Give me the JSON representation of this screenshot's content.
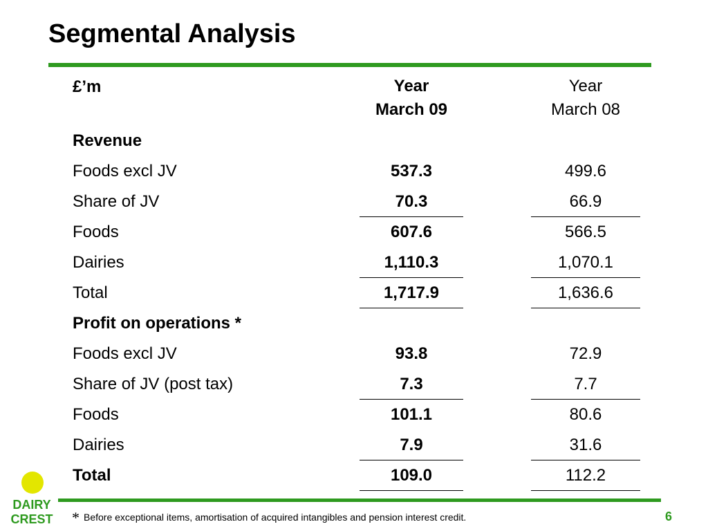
{
  "slide": {
    "title": "Segmental Analysis",
    "accent_color": "#2e9a1f",
    "logo_text_color": "#2e9a1f",
    "logo_sun_color": "#e3e600"
  },
  "table": {
    "unit_label": "£’m",
    "columns": [
      {
        "line1": "Year",
        "line2": "March 09"
      },
      {
        "line1": "Year",
        "line2": "March 08"
      }
    ],
    "rows": [
      {
        "label": "Revenue",
        "v1": "",
        "v2": ""
      },
      {
        "label": "Foods excl JV",
        "v1": "537.3",
        "v2": "499.6"
      },
      {
        "label": "Share of JV",
        "v1": "70.3",
        "v2": "66.9"
      },
      {
        "label": "Foods",
        "v1": "607.6",
        "v2": "566.5"
      },
      {
        "label": "Dairies",
        "v1": "1,110.3",
        "v2": "1,070.1"
      },
      {
        "label": "Total",
        "v1": "1,717.9",
        "v2": "1,636.6"
      },
      {
        "label": "Profit on operations *",
        "v1": "",
        "v2": ""
      },
      {
        "label": "Foods excl JV",
        "v1": "93.8",
        "v2": "72.9"
      },
      {
        "label": "Share of JV (post tax)",
        "v1": "7.3",
        "v2": "7.7"
      },
      {
        "label": "Foods",
        "v1": "101.1",
        "v2": "80.6"
      },
      {
        "label": "Dairies",
        "v1": "7.9",
        "v2": "31.6"
      },
      {
        "label": "Total",
        "v1": "109.0",
        "v2": "112.2"
      }
    ]
  },
  "logo": {
    "line1": "DAIRY",
    "line2": "CREST"
  },
  "footer": {
    "footnote_mark": "*",
    "footnote": "Before exceptional items, amortisation of acquired intangibles and pension interest credit.",
    "page_number": "6"
  }
}
